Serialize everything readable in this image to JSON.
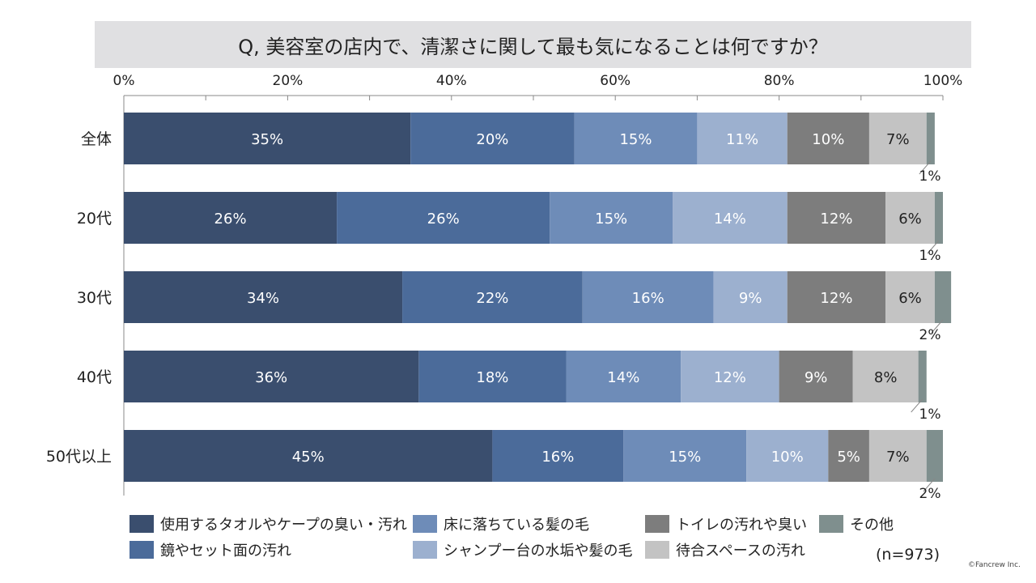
{
  "chart_data": {
    "type": "stacked-bar-horizontal",
    "title": "Q, 美容室の店内で、清潔さに関して最も気になることは何ですか？",
    "x_ticks": [
      "0%",
      "20%",
      "40%",
      "60%",
      "80%",
      "100%"
    ],
    "xlim": [
      0,
      100
    ],
    "categories": [
      "全体",
      "20代",
      "30代",
      "40代",
      "50代以上"
    ],
    "series": [
      {
        "name": "使用するタオルやケープの臭い・汚れ",
        "color": "#3a4e6e",
        "values": [
          35,
          26,
          34,
          36,
          45
        ],
        "labels": [
          "35%",
          "26%",
          "34%",
          "36%",
          "45%"
        ]
      },
      {
        "name": "鏡やセット面の汚れ",
        "color": "#4b6b9a",
        "values": [
          20,
          26,
          22,
          18,
          16
        ],
        "labels": [
          "20%",
          "26%",
          "22%",
          "18%",
          "16%"
        ]
      },
      {
        "name": "床に落ちている髪の毛",
        "color": "#6e8cb8",
        "values": [
          15,
          15,
          16,
          14,
          15
        ],
        "labels": [
          "15%",
          "15%",
          "16%",
          "14%",
          "15%"
        ]
      },
      {
        "name": "シャンプー台の水垢や髪の毛",
        "color": "#9cb0cf",
        "values": [
          11,
          14,
          9,
          12,
          10
        ],
        "labels": [
          "11%",
          "14%",
          "9%",
          "12%",
          "10%"
        ]
      },
      {
        "name": "トイレの汚れや臭い",
        "color": "#7d7d7d",
        "values": [
          10,
          12,
          12,
          9,
          5
        ],
        "labels": [
          "10%",
          "12%",
          "12%",
          "9%",
          "5%"
        ]
      },
      {
        "name": "待合スペースの汚れ",
        "color": "#c3c3c3",
        "values": [
          7,
          6,
          6,
          8,
          7
        ],
        "labels": [
          "7%",
          "6%",
          "6%",
          "8%",
          "7%"
        ]
      },
      {
        "name": "その他",
        "color": "#7f8f8e",
        "values": [
          1,
          1,
          2,
          1,
          2
        ],
        "labels": [
          "1%",
          "1%",
          "2%",
          "1%",
          "2%"
        ]
      }
    ],
    "legend_position": "bottom"
  },
  "footer": {
    "n_label": "(n=973)",
    "credit": "©Fancrew Inc."
  }
}
